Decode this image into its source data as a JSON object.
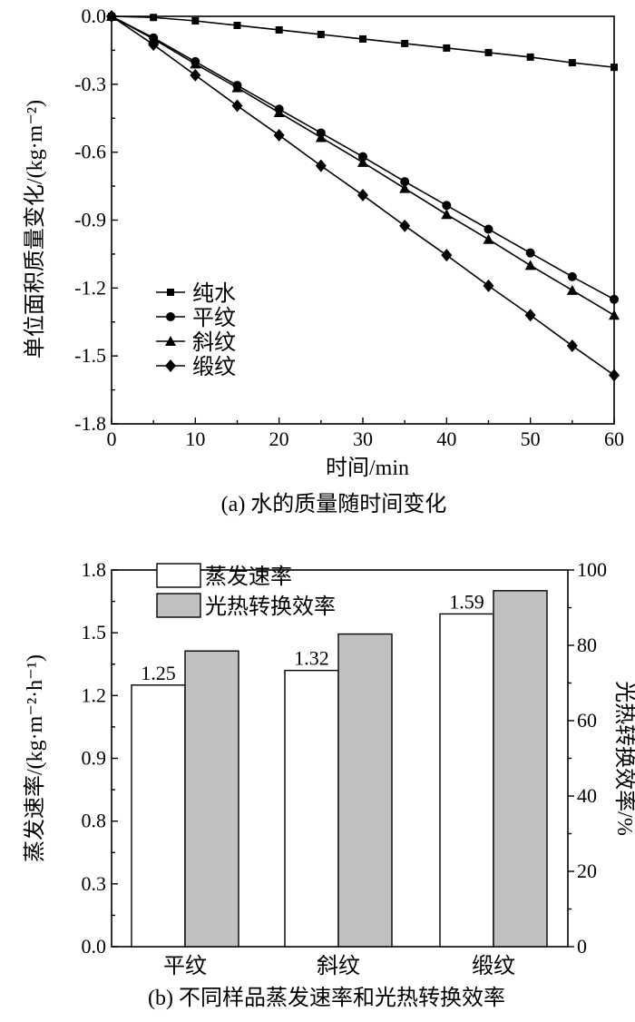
{
  "chart_data": [
    {
      "type": "line",
      "caption": "(a) 水的质量随时间变化",
      "xlabel": "时间/min",
      "ylabel": "单位面积质量变化/(kg·m⁻²)",
      "xlim": [
        0,
        60
      ],
      "ylim": [
        -1.8,
        0.0
      ],
      "x_ticks": [
        "0",
        "10",
        "20",
        "30",
        "40",
        "50",
        "60"
      ],
      "y_ticks": [
        "0.0",
        "-0.3",
        "-0.6",
        "-0.9",
        "-1.2",
        "-1.5",
        "-1.8"
      ],
      "x": [
        0,
        5,
        10,
        15,
        20,
        25,
        30,
        35,
        40,
        45,
        50,
        55,
        60
      ],
      "legend_position": "left-middle",
      "series": [
        {
          "name": "纯水",
          "marker": "square",
          "values": [
            0,
            -0.005,
            -0.02,
            -0.04,
            -0.06,
            -0.08,
            -0.1,
            -0.12,
            -0.14,
            -0.16,
            -0.18,
            -0.205,
            -0.225
          ]
        },
        {
          "name": "平纹",
          "marker": "circle",
          "values": [
            0,
            -0.095,
            -0.2,
            -0.305,
            -0.41,
            -0.515,
            -0.62,
            -0.73,
            -0.835,
            -0.94,
            -1.045,
            -1.15,
            -1.25
          ]
        },
        {
          "name": "斜纹",
          "marker": "triangle",
          "values": [
            0,
            -0.1,
            -0.21,
            -0.315,
            -0.425,
            -0.535,
            -0.645,
            -0.76,
            -0.875,
            -0.985,
            -1.1,
            -1.21,
            -1.32
          ]
        },
        {
          "name": "缎纹",
          "marker": "diamond",
          "values": [
            0,
            -0.125,
            -0.26,
            -0.395,
            -0.525,
            -0.66,
            -0.79,
            -0.925,
            -1.055,
            -1.19,
            -1.32,
            -1.455,
            -1.585
          ]
        }
      ]
    },
    {
      "type": "bar",
      "caption": "(b) 不同样品蒸发速率和光热转换效率",
      "categories": [
        "平纹",
        "斜纹",
        "缎纹"
      ],
      "ylabel_left": "蒸发速率/(kg·m⁻²·h⁻¹)",
      "ylabel_right": "光热转换效率/%",
      "ylim_left": [
        0.0,
        1.8
      ],
      "ylim_right": [
        0,
        100
      ],
      "y_ticks_left": [
        "0.0",
        "0.3",
        "0.8",
        "0.9",
        "1.2",
        "1.5",
        "1.8"
      ],
      "y_ticks_right": [
        "0",
        "20",
        "40",
        "60",
        "80",
        "100"
      ],
      "legend_position": "top-left",
      "series": [
        {
          "name": "蒸发速率",
          "axis": "left",
          "color": "#ffffff",
          "values": [
            1.25,
            1.32,
            1.59
          ],
          "labels": [
            "1.25",
            "1.32",
            "1.59"
          ]
        },
        {
          "name": "光热转换效率",
          "axis": "right",
          "color": "#c0c0c0",
          "values": [
            78.5,
            83,
            94.5
          ]
        }
      ]
    }
  ]
}
